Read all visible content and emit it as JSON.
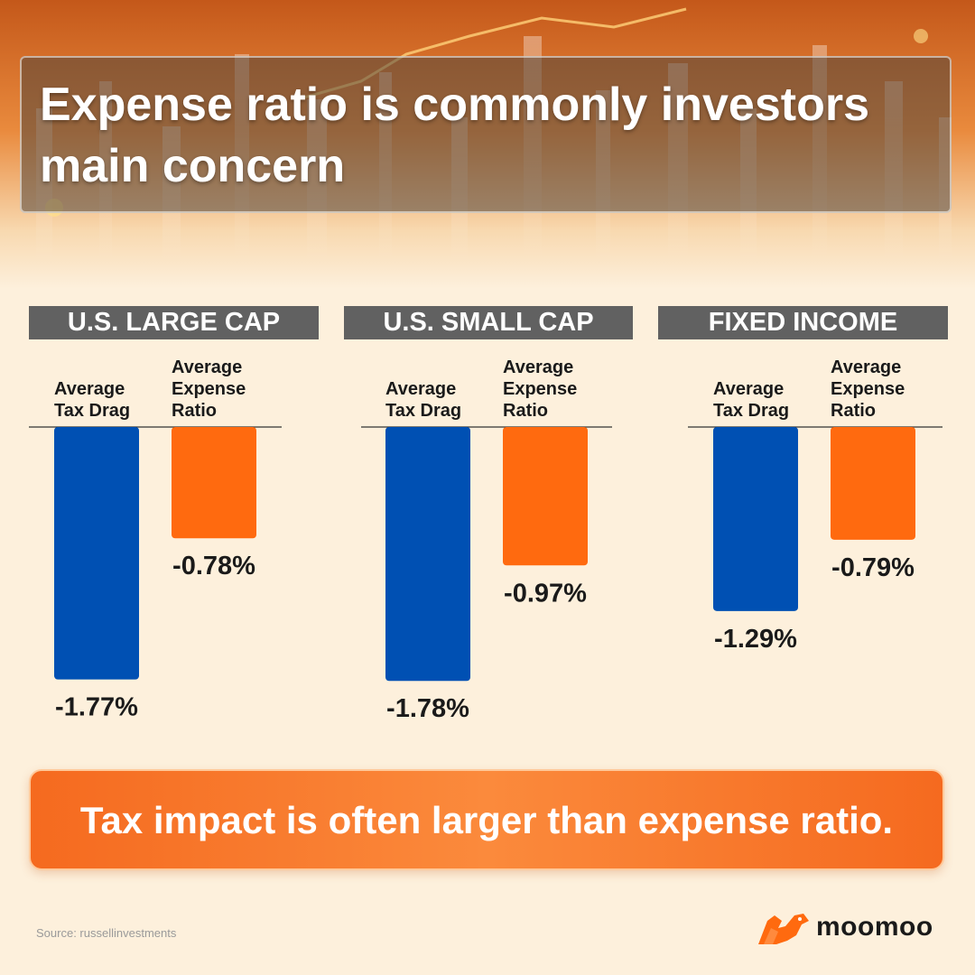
{
  "header": {
    "title": "Expense ratio is commonly investors main concern"
  },
  "chart_data": {
    "type": "bar",
    "colors": {
      "tax_drag": "#0050b3",
      "expense_ratio": "#ff6a0f"
    },
    "groups": [
      {
        "name": "U.S. LARGE CAP",
        "categories": [
          "Average Tax Drag",
          "Average Expense Ratio"
        ],
        "values": [
          -1.77,
          -0.78
        ],
        "labels": [
          "-1.77%",
          "-0.78%"
        ]
      },
      {
        "name": "U.S. SMALL CAP",
        "categories": [
          "Average Tax Drag",
          "Average Expense Ratio"
        ],
        "values": [
          -1.78,
          -0.97
        ],
        "labels": [
          "-1.78%",
          "-0.97%"
        ]
      },
      {
        "name": "FIXED INCOME",
        "categories": [
          "Average Tax Drag",
          "Average Expense Ratio"
        ],
        "values": [
          -1.29,
          -0.79
        ],
        "labels": [
          "-1.29%",
          "-0.79%"
        ]
      }
    ]
  },
  "footer": {
    "banner": "Tax impact is often larger than expense ratio.",
    "source": "Source: russellinvestments",
    "brand": "moomoo"
  }
}
